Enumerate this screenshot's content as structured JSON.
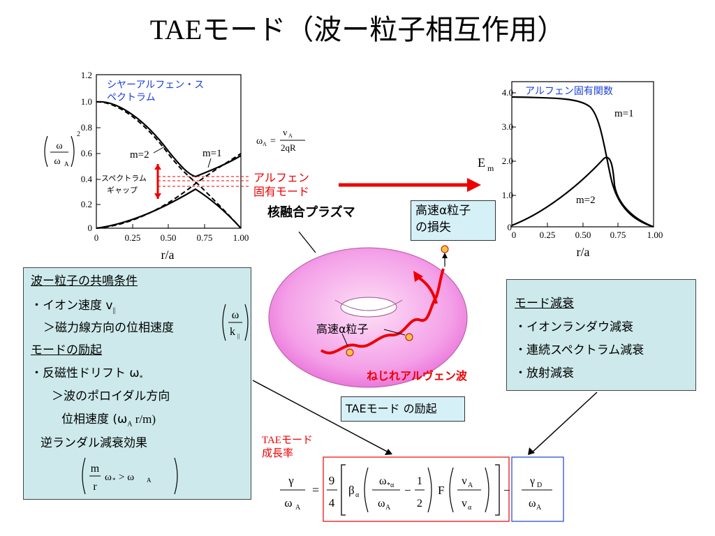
{
  "title": {
    "latin": "TAE",
    "jp": "モード（波ー粒子相互作用）"
  },
  "left_chart": {
    "legend_title_1": "シヤーアルフェン・ス",
    "legend_title_2": "ペクトラム",
    "ylabel_num": "ω",
    "ylabel_den": "ω",
    "ylabel_den_sub": "A",
    "ylabel_exp": "2",
    "xlabel": "r/a",
    "xticks": [
      "0",
      "0.25",
      "0.50",
      "0.75",
      "1.00"
    ],
    "yticks": [
      "0",
      "0.2",
      "0.4",
      "0.6",
      "0.8",
      "1.0",
      "1.2"
    ],
    "label_m2": "m=2",
    "label_m1": "m=1",
    "gap_label_1": "スペクトラム",
    "gap_label_2": "ギャップ",
    "alfven_label_1": "アルフェン",
    "alfven_label_2": "固有モード",
    "omega_A_lhs": "ω",
    "omega_A_lhs_sub": "A",
    "omega_A_num": "v",
    "omega_A_num_sub": "A",
    "omega_A_den": "2qR"
  },
  "right_chart": {
    "legend_title": "アルフェン固有関数",
    "ylabel": "E",
    "ylabel_sub": "m",
    "xlabel": "r/a",
    "xticks": [
      "0",
      "0.25",
      "0.50",
      "0.75",
      "1.00"
    ],
    "yticks": [
      "0",
      "1.0",
      "2.0",
      "3.0",
      "4.0"
    ],
    "label_m1": "m=1",
    "label_m2": "m=2"
  },
  "diagram": {
    "plasma_label": "核融合プラズマ",
    "loss_box_1": "高速α粒子",
    "loss_box_2": "の損失",
    "fast_particle": "高速α粒子",
    "wave_label": "ねじれアルヴェン波",
    "excitation_box": "TAEモード の励起"
  },
  "resonance_box": {
    "line1": "波ー粒子の共鳴条件",
    "line2": "・イオン速度 v",
    "line2_sub": "||",
    "line3": "＞磁力線方向の位相速度",
    "line3_num": "ω",
    "line3_den": "k",
    "line3_den_sub": "||",
    "line4": "モードの励起",
    "line5": "・反磁性ドリフト ω",
    "line5_sub": "*",
    "line6": "＞波のポロイダル方向",
    "line7": "位相速度 (ω",
    "line7_sub": "A",
    "line7_tail": " r/m)",
    "line8": "逆ランダル減衰効果",
    "cond_num": "m",
    "cond_den": "r",
    "cond_tail": "ω",
    "cond_tail_sub": "*",
    "cond_gt": " > ω",
    "cond_gt_sub": "A"
  },
  "damping_box": {
    "line1": "モード減衰",
    "line2": "・イオンランダウ減衰",
    "line3": "・連続スペクトラム減衰",
    "line4": "・放射減衰"
  },
  "growth": {
    "label_1": "TAEモード",
    "label_2": "成長率",
    "lhs_num": "γ",
    "lhs_den": "ω",
    "lhs_den_sub": "A",
    "eq": "=",
    "c_num": "9",
    "c_den": "4",
    "beta": "β",
    "beta_sub": "α",
    "f1_num": "ω",
    "f1_num_sub": "*α",
    "f1_den": "ω",
    "f1_den_sub": "A",
    "minus": "−",
    "half_num": "1",
    "half_den": "2",
    "F": "F",
    "f2_num": "v",
    "f2_num_sub": "A",
    "f2_den": "v",
    "f2_den_sub": "α",
    "minus2": "−",
    "d_num": "γ",
    "d_num_sub": "D",
    "d_den": "ω",
    "d_den_sub": "A"
  },
  "colors": {
    "red": "#e00000",
    "blue": "#1a3fd8",
    "box": "#cde9eb",
    "torus": "#f4a0e8"
  }
}
